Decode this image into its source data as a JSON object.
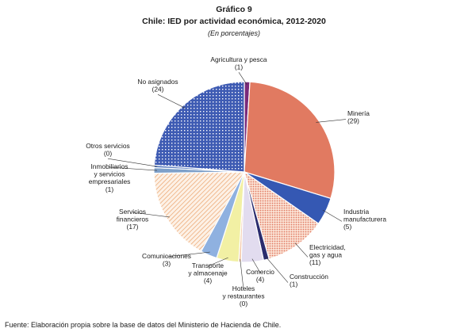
{
  "chart_data": {
    "type": "pie",
    "label_prefix": "Gráfico 9",
    "title": "Chile: IED por actividad económica, 2012-2020",
    "subtitle": "(En porcentajes)",
    "source": "Fuente: Elaboración propia sobre la base de datos del Ministerio de Hacienda de Chile.",
    "slices": [
      {
        "label": "Agricultura y pesca",
        "value": 1,
        "value_label": "(1)",
        "color": "#7a2a7a",
        "pattern": "solid"
      },
      {
        "label": "Minería",
        "value": 29,
        "value_label": "(29)",
        "color": "#e17a61",
        "pattern": "solid"
      },
      {
        "label": "Industria manufacturera",
        "value": 5,
        "value_label": "(5)",
        "color": "#3558b3",
        "pattern": "solid"
      },
      {
        "label": "Electricidad, gas y agua",
        "value": 11,
        "value_label": "(11)",
        "color": "#e17a61",
        "pattern": "dots"
      },
      {
        "label": "Construcción",
        "value": 1,
        "value_label": "(1)",
        "color": "#2b2d6e",
        "pattern": "solid"
      },
      {
        "label": "Comercio",
        "value": 4,
        "value_label": "(4)",
        "color": "#e2dcef",
        "pattern": "solid"
      },
      {
        "label": "Hoteles y restaurantes",
        "value": 0,
        "value_label": "(0)",
        "color": "#f4c9a8",
        "pattern": "solid"
      },
      {
        "label": "Transporte y almacenaje",
        "value": 4,
        "value_label": "(4)",
        "color": "#f2f0a4",
        "pattern": "solid"
      },
      {
        "label": "Comunicaciones",
        "value": 3,
        "value_label": "(3)",
        "color": "#8fb1e0",
        "pattern": "solid"
      },
      {
        "label": "Servicios financieros",
        "value": 17,
        "value_label": "(17)",
        "color": "#e8975a",
        "pattern": "hatch"
      },
      {
        "label": "Inmobiliarios y servicios empresariales",
        "value": 1,
        "value_label": "(1)",
        "color": "#7ea0c9",
        "pattern": "solid"
      },
      {
        "label": "Otros servicios",
        "value": 0,
        "value_label": "(0)",
        "color": "#5d7ec0",
        "pattern": "solid"
      },
      {
        "label": "No asignados",
        "value": 24,
        "value_label": "(24)",
        "color": "#3e5bb3",
        "pattern": "grid"
      }
    ],
    "label_lines": [
      [
        "Agricultura y pesca"
      ],
      [
        "Minería"
      ],
      [
        "Industria",
        "manufacturera"
      ],
      [
        "Electricidad,",
        "gas y agua"
      ],
      [
        "Construcción"
      ],
      [
        "Comercio"
      ],
      [
        "Hoteles",
        "y restaurantes"
      ],
      [
        "Transporte",
        "y almacenaje"
      ],
      [
        "Comunicaciones"
      ],
      [
        "Servicios",
        "financieros"
      ],
      [
        "Inmobiliarios",
        "y servicios",
        "empresariales"
      ],
      [
        "Otros servicios"
      ],
      [
        "No asignados"
      ]
    ]
  }
}
